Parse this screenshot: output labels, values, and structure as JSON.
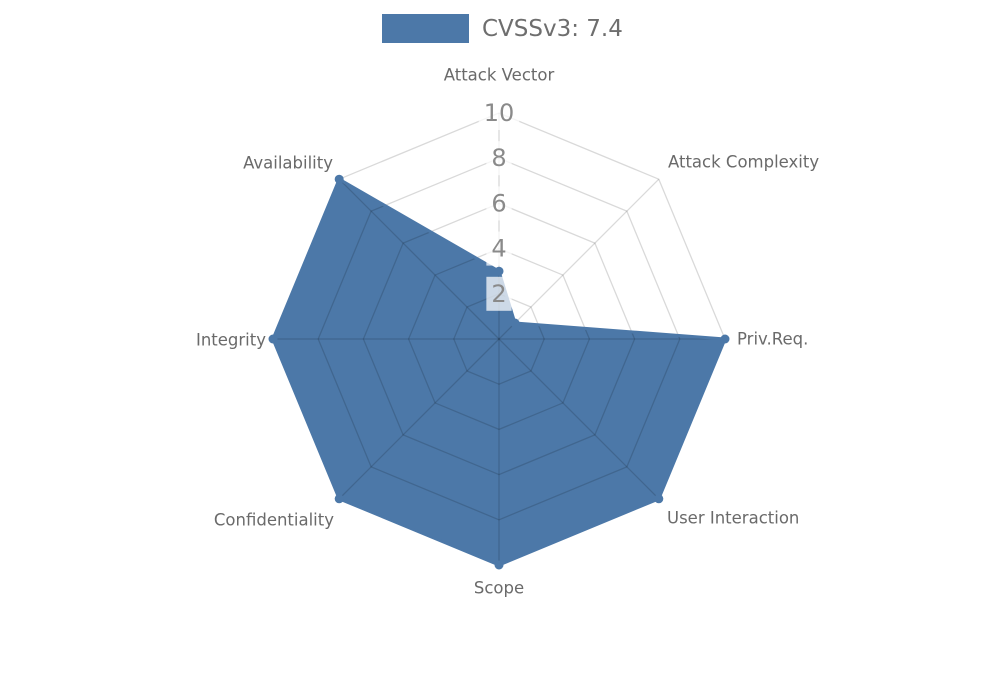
{
  "legend": {
    "label": "CVSSv3: 7.4",
    "swatch_color": "#4C78A8"
  },
  "chart_data": {
    "type": "radar",
    "title": "CVSSv3: 7.4",
    "categories": [
      "Attack Vector",
      "Attack Complexity",
      "Priv.Req.",
      "User Interaction",
      "Scope",
      "Confidentiality",
      "Integrity",
      "Availability"
    ],
    "series": [
      {
        "name": "CVSSv3: 7.4",
        "values": [
          3,
          1,
          10,
          10,
          10,
          10,
          10,
          10
        ]
      }
    ],
    "ticks": [
      2,
      4,
      6,
      8,
      10
    ],
    "rmax": 10,
    "legend_position": "top",
    "grid": "on",
    "colors": {
      "fill": "#4C78A8",
      "stroke": "#4C78A8",
      "marker": "#4C78A8",
      "grid_line": "rgba(0,0,0,0.15)",
      "axis_label": "#6a6a6a",
      "tick_text": "#8a8a8a",
      "tick_box": "rgba(255,255,255,0.72)"
    }
  }
}
